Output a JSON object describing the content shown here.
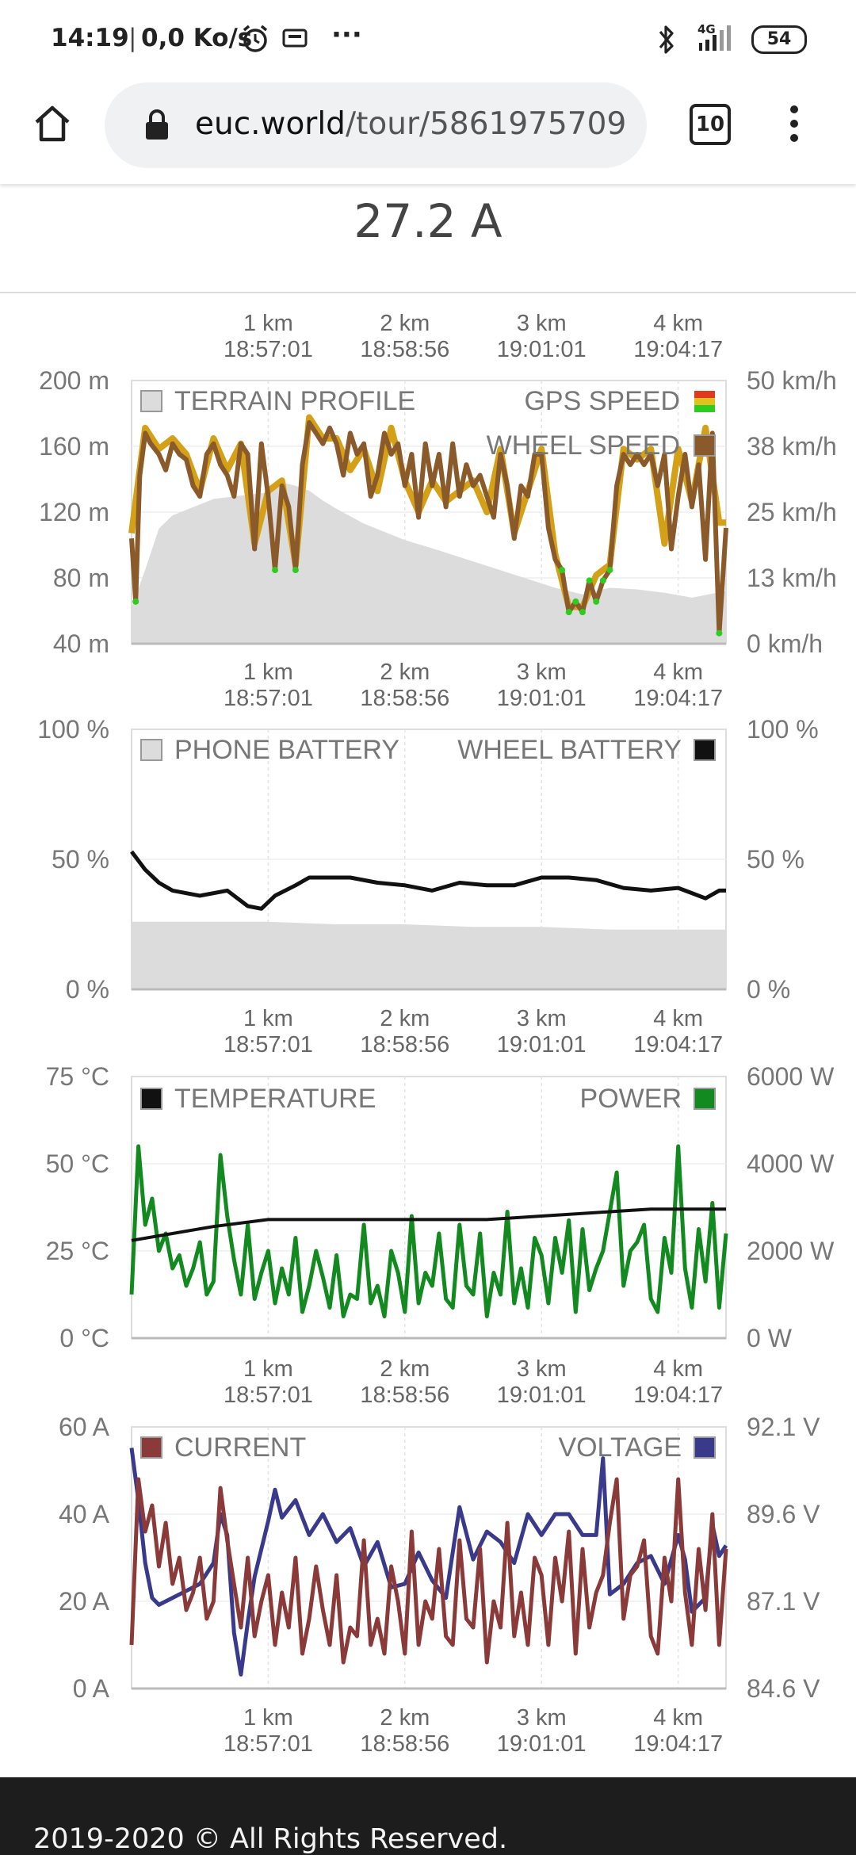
{
  "status_bar": {
    "time": "14:19",
    "speed": "0,0 Ko/s",
    "more": "···",
    "network": "4G",
    "battery": "54"
  },
  "browser": {
    "url_host": "euc.world",
    "url_path": "/tour/5861975709",
    "tab_count": "10"
  },
  "header": {
    "value": "27.2 A"
  },
  "x_ticks": [
    {
      "km": "1 km",
      "time": "18:57:01"
    },
    {
      "km": "2 km",
      "time": "18:58:56"
    },
    {
      "km": "3 km",
      "time": "19:01:01"
    },
    {
      "km": "4 km",
      "time": "19:04:17"
    }
  ],
  "colors": {
    "terrain": "#dcdcdc",
    "wheel_speed": "#8b5a2b",
    "gps_speed": "#d4a017",
    "gps_low": "#2ecc1e",
    "wheel_battery": "#111111",
    "phone_battery": "#dcdcdc",
    "temperature": "#111111",
    "power": "#138a1f",
    "current": "#8b3a3a",
    "voltage": "#3a3a8c",
    "footer_bg": "#1d1d1d"
  },
  "chart_data": [
    {
      "type": "area",
      "title": "",
      "legend": {
        "left": "TERRAIN PROFILE",
        "right_1": "GPS SPEED",
        "right_2": "WHEEL SPEED"
      },
      "x_range_km": [
        0,
        4.35
      ],
      "y_left": {
        "ticks": [
          "200 m",
          "160 m",
          "120 m",
          "80 m",
          "40 m"
        ],
        "range": [
          40,
          200
        ],
        "unit": "m"
      },
      "y_right": {
        "ticks": [
          "50 km/h",
          "38 km/h",
          "25 km/h",
          "13 km/h",
          "0 km/h"
        ],
        "range": [
          0,
          50
        ],
        "unit": "km/h"
      },
      "series": [
        {
          "name": "TERRAIN PROFILE",
          "x": [
            0,
            0.1,
            0.2,
            0.3,
            0.45,
            0.6,
            0.8,
            1.0,
            1.1,
            1.2,
            1.3,
            1.4,
            1.5,
            1.7,
            2.0,
            2.2,
            2.5,
            2.8,
            3.1,
            3.3,
            3.5,
            3.7,
            3.9,
            4.1,
            4.35
          ],
          "values": [
            62,
            85,
            110,
            118,
            123,
            128,
            130,
            132,
            138,
            136,
            133,
            127,
            122,
            113,
            103,
            98,
            90,
            82,
            74,
            70,
            74,
            73,
            71,
            68,
            72
          ]
        },
        {
          "name": "WHEEL SPEED",
          "x": [
            0,
            0.03,
            0.06,
            0.1,
            0.14,
            0.2,
            0.25,
            0.3,
            0.35,
            0.4,
            0.45,
            0.5,
            0.55,
            0.6,
            0.65,
            0.7,
            0.75,
            0.8,
            0.85,
            0.9,
            0.95,
            1.0,
            1.05,
            1.1,
            1.15,
            1.2,
            1.25,
            1.3,
            1.35,
            1.4,
            1.45,
            1.5,
            1.55,
            1.6,
            1.65,
            1.7,
            1.75,
            1.8,
            1.85,
            1.9,
            1.95,
            2.0,
            2.05,
            2.1,
            2.15,
            2.2,
            2.25,
            2.3,
            2.35,
            2.4,
            2.45,
            2.5,
            2.55,
            2.6,
            2.65,
            2.7,
            2.75,
            2.8,
            2.85,
            2.9,
            2.95,
            3.0,
            3.05,
            3.1,
            3.15,
            3.2,
            3.25,
            3.3,
            3.35,
            3.4,
            3.45,
            3.5,
            3.55,
            3.6,
            3.65,
            3.7,
            3.75,
            3.8,
            3.85,
            3.9,
            3.95,
            4.0,
            4.05,
            4.1,
            4.15,
            4.2,
            4.25,
            4.3,
            4.35
          ],
          "values": [
            20,
            8,
            32,
            40,
            38,
            36,
            33,
            38,
            36,
            35,
            30,
            28,
            36,
            38,
            34,
            32,
            28,
            38,
            36,
            18,
            38,
            28,
            14,
            30,
            26,
            14,
            34,
            42,
            40,
            38,
            41,
            38,
            32,
            40,
            36,
            38,
            28,
            32,
            40,
            36,
            38,
            30,
            36,
            24,
            38,
            30,
            36,
            26,
            38,
            28,
            34,
            30,
            32,
            28,
            24,
            36,
            30,
            20,
            30,
            28,
            36,
            36,
            22,
            16,
            14,
            6,
            8,
            6,
            12,
            8,
            12,
            14,
            30,
            36,
            34,
            36,
            34,
            36,
            30,
            36,
            18,
            28,
            36,
            26,
            34,
            16,
            40,
            2,
            22
          ]
        },
        {
          "name": "GPS SPEED",
          "x": [
            0,
            0.06,
            0.1,
            0.2,
            0.3,
            0.4,
            0.5,
            0.6,
            0.7,
            0.8,
            0.9,
            1.0,
            1.1,
            1.2,
            1.3,
            1.4,
            1.5,
            1.6,
            1.7,
            1.8,
            1.9,
            2.0,
            2.1,
            2.2,
            2.3,
            2.4,
            2.5,
            2.6,
            2.7,
            2.8,
            2.9,
            3.0,
            3.1,
            3.2,
            3.3,
            3.4,
            3.5,
            3.6,
            3.7,
            3.8,
            3.9,
            4.0,
            4.1,
            4.2,
            4.3,
            4.35
          ],
          "values": [
            21,
            33,
            41,
            37,
            39,
            36,
            29,
            39,
            33,
            38,
            19,
            29,
            31,
            15,
            43,
            39,
            39,
            33,
            37,
            29,
            41,
            31,
            25,
            31,
            27,
            29,
            31,
            25,
            37,
            21,
            29,
            37,
            17,
            7,
            7,
            13,
            15,
            37,
            35,
            37,
            19,
            37,
            27,
            41,
            23,
            23
          ]
        }
      ],
      "annotations": [
        "1 km",
        "2 km",
        "3 km",
        "4 km"
      ]
    },
    {
      "type": "line",
      "title": "",
      "legend": {
        "left": "PHONE BATTERY",
        "right": "WHEEL BATTERY"
      },
      "y_left": {
        "ticks": [
          "100 %",
          "50 %",
          "0 %"
        ],
        "range": [
          0,
          100
        ],
        "unit": "%"
      },
      "y_right": {
        "ticks": [
          "100 %",
          "50 %",
          "0 %"
        ],
        "range": [
          0,
          100
        ],
        "unit": "%"
      },
      "series": [
        {
          "name": "WHEEL BATTERY",
          "x": [
            0,
            0.1,
            0.2,
            0.3,
            0.5,
            0.7,
            0.85,
            0.95,
            1.05,
            1.2,
            1.3,
            1.4,
            1.6,
            1.8,
            2.0,
            2.2,
            2.4,
            2.6,
            2.8,
            3.0,
            3.2,
            3.4,
            3.6,
            3.8,
            4.0,
            4.1,
            4.2,
            4.3,
            4.35
          ],
          "values": [
            53,
            46,
            41,
            38,
            36,
            38,
            32,
            31,
            36,
            40,
            43,
            43,
            43,
            41,
            40,
            38,
            41,
            40,
            40,
            43,
            43,
            42,
            39,
            38,
            39,
            37,
            35,
            38,
            38
          ]
        },
        {
          "name": "PHONE BATTERY",
          "x": [
            0,
            0.5,
            1.0,
            1.5,
            2.0,
            2.5,
            3.0,
            3.5,
            4.0,
            4.35
          ],
          "values": [
            26,
            26,
            26,
            25,
            25,
            24,
            24,
            23,
            23,
            23
          ]
        }
      ]
    },
    {
      "type": "line",
      "title": "",
      "legend": {
        "left": "TEMPERATURE",
        "right": "POWER"
      },
      "y_left": {
        "ticks": [
          "75 °C",
          "50 °C",
          "25 °C",
          "0 °C"
        ],
        "range": [
          0,
          75
        ],
        "unit": "°C"
      },
      "y_right": {
        "ticks": [
          "6000 W",
          "4000 W",
          "2000 W",
          "0 W"
        ],
        "range": [
          0,
          6000
        ],
        "unit": "W"
      },
      "series": [
        {
          "name": "TEMPERATURE",
          "x": [
            0,
            0.3,
            0.6,
            1.0,
            1.4,
            1.8,
            2.2,
            2.6,
            3.0,
            3.4,
            3.8,
            4.2,
            4.35
          ],
          "values": [
            28,
            30,
            32,
            34,
            34,
            34,
            34,
            34,
            35,
            36,
            37,
            37,
            37
          ]
        },
        {
          "name": "POWER",
          "x": [
            0,
            0.05,
            0.1,
            0.15,
            0.2,
            0.25,
            0.3,
            0.35,
            0.4,
            0.45,
            0.5,
            0.55,
            0.6,
            0.65,
            0.7,
            0.75,
            0.8,
            0.85,
            0.9,
            0.95,
            1.0,
            1.05,
            1.1,
            1.15,
            1.2,
            1.25,
            1.3,
            1.35,
            1.4,
            1.45,
            1.5,
            1.55,
            1.6,
            1.65,
            1.7,
            1.75,
            1.8,
            1.85,
            1.9,
            1.95,
            2.0,
            2.05,
            2.1,
            2.15,
            2.2,
            2.25,
            2.3,
            2.35,
            2.4,
            2.45,
            2.5,
            2.55,
            2.6,
            2.65,
            2.7,
            2.75,
            2.8,
            2.85,
            2.9,
            2.95,
            3.0,
            3.05,
            3.1,
            3.15,
            3.2,
            3.25,
            3.3,
            3.35,
            3.4,
            3.45,
            3.5,
            3.55,
            3.6,
            3.65,
            3.7,
            3.75,
            3.8,
            3.85,
            3.9,
            3.95,
            4.0,
            4.05,
            4.1,
            4.15,
            4.2,
            4.25,
            4.3,
            4.35
          ],
          "values": [
            1000,
            4400,
            2600,
            3200,
            2000,
            2400,
            1600,
            1900,
            1200,
            1600,
            2200,
            1000,
            1300,
            4200,
            2800,
            1800,
            1000,
            2600,
            900,
            1500,
            2000,
            800,
            1600,
            1000,
            2300,
            600,
            1200,
            2000,
            1400,
            700,
            1900,
            500,
            1000,
            900,
            2600,
            800,
            1200,
            500,
            2000,
            1500,
            600,
            2800,
            800,
            1500,
            1200,
            2400,
            900,
            700,
            2600,
            1200,
            1000,
            2400,
            500,
            1500,
            1000,
            2900,
            800,
            1600,
            700,
            2300,
            1900,
            800,
            2300,
            1500,
            2700,
            600,
            2500,
            1100,
            1600,
            2000,
            2900,
            3800,
            1200,
            2000,
            2200,
            2600,
            900,
            600,
            2300,
            1500,
            4400,
            1600,
            700,
            2500,
            1300,
            3100,
            700,
            2400
          ]
        }
      ]
    },
    {
      "type": "line",
      "title": "",
      "legend": {
        "left": "CURRENT",
        "right": "VOLTAGE"
      },
      "y_left": {
        "ticks": [
          "60 A",
          "40 A",
          "20 A",
          "0 A"
        ],
        "range": [
          0,
          60
        ],
        "unit": "A"
      },
      "y_right": {
        "ticks": [
          "92.1 V",
          "89.6 V",
          "87.1 V",
          "84.6 V"
        ],
        "range": [
          84.6,
          92.1
        ],
        "unit": "V"
      },
      "series": [
        {
          "name": "CURRENT",
          "x": [
            0,
            0.05,
            0.1,
            0.15,
            0.2,
            0.25,
            0.3,
            0.35,
            0.4,
            0.45,
            0.5,
            0.55,
            0.6,
            0.65,
            0.7,
            0.75,
            0.8,
            0.85,
            0.9,
            0.95,
            1.0,
            1.05,
            1.1,
            1.15,
            1.2,
            1.25,
            1.3,
            1.35,
            1.4,
            1.45,
            1.5,
            1.55,
            1.6,
            1.65,
            1.7,
            1.75,
            1.8,
            1.85,
            1.9,
            1.95,
            2.0,
            2.05,
            2.1,
            2.15,
            2.2,
            2.25,
            2.3,
            2.35,
            2.4,
            2.45,
            2.5,
            2.55,
            2.6,
            2.65,
            2.7,
            2.75,
            2.8,
            2.85,
            2.9,
            2.95,
            3.0,
            3.05,
            3.1,
            3.15,
            3.2,
            3.25,
            3.3,
            3.35,
            3.4,
            3.45,
            3.5,
            3.55,
            3.6,
            3.65,
            3.7,
            3.75,
            3.8,
            3.85,
            3.9,
            3.95,
            4.0,
            4.05,
            4.1,
            4.15,
            4.2,
            4.25,
            4.3,
            4.35
          ],
          "values": [
            10,
            48,
            36,
            42,
            28,
            38,
            24,
            30,
            18,
            22,
            30,
            16,
            20,
            46,
            34,
            24,
            14,
            30,
            12,
            20,
            26,
            10,
            22,
            14,
            30,
            8,
            16,
            28,
            18,
            10,
            26,
            6,
            14,
            12,
            34,
            10,
            16,
            8,
            28,
            20,
            8,
            36,
            10,
            20,
            16,
            32,
            12,
            10,
            34,
            16,
            14,
            32,
            6,
            20,
            14,
            38,
            12,
            22,
            10,
            30,
            26,
            10,
            30,
            20,
            36,
            8,
            32,
            14,
            22,
            26,
            38,
            48,
            16,
            26,
            28,
            34,
            12,
            8,
            30,
            20,
            48,
            22,
            10,
            32,
            18,
            40,
            10,
            32
          ]
        },
        {
          "name": "VOLTAGE",
          "x": [
            0,
            0.05,
            0.1,
            0.15,
            0.2,
            0.3,
            0.4,
            0.5,
            0.6,
            0.65,
            0.7,
            0.75,
            0.8,
            0.85,
            0.9,
            1.0,
            1.05,
            1.1,
            1.2,
            1.3,
            1.4,
            1.5,
            1.6,
            1.7,
            1.8,
            1.9,
            2.0,
            2.1,
            2.2,
            2.3,
            2.4,
            2.5,
            2.6,
            2.7,
            2.8,
            2.9,
            3.0,
            3.1,
            3.2,
            3.3,
            3.4,
            3.45,
            3.5,
            3.6,
            3.7,
            3.8,
            3.9,
            4.0,
            4.05,
            4.1,
            4.2,
            4.25,
            4.3,
            4.35
          ],
          "values": [
            91.5,
            90.0,
            88.2,
            87.2,
            87.0,
            87.2,
            87.4,
            87.6,
            88.2,
            89.6,
            89.0,
            86.2,
            85.0,
            86.5,
            87.8,
            89.4,
            90.3,
            89.5,
            90.0,
            89.0,
            89.6,
            88.8,
            89.2,
            88.1,
            88.8,
            87.5,
            87.6,
            88.5,
            87.7,
            87.2,
            89.8,
            88.3,
            89.1,
            88.8,
            88.2,
            89.6,
            89.0,
            89.6,
            89.6,
            89.0,
            89.0,
            91.2,
            87.3,
            87.6,
            88.2,
            88.4,
            87.6,
            89.0,
            88.3,
            86.8,
            87.2,
            89.3,
            88.4,
            88.7
          ]
        }
      ]
    }
  ],
  "footer": {
    "text": "2019-2020 © All Rights Reserved."
  }
}
